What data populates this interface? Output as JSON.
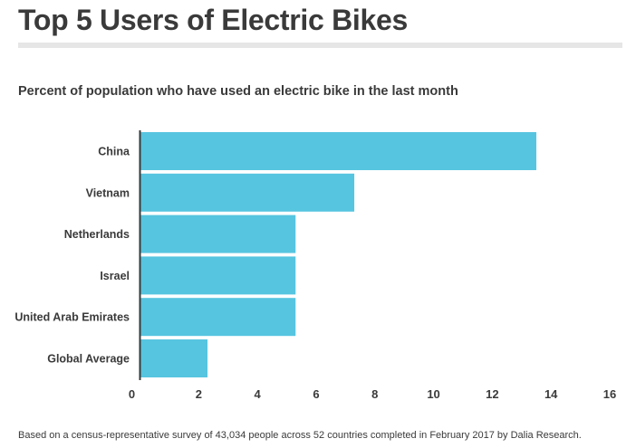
{
  "header": {
    "title": "Top 5 Users of Electric Bikes",
    "subtitle": "Percent of population who have used an electric bike in the last month"
  },
  "footnote": "Based on a census-representative survey of 43,034 people across 52 countries completed in February 2017 by Dalia Research.",
  "colors": {
    "bar": "#56c5e0",
    "axis": "#3a3a3a",
    "title_rule": "#e6e6e6"
  },
  "chart_data": {
    "type": "bar",
    "orientation": "horizontal",
    "title": "Top 5 Users of Electric Bikes",
    "subtitle": "Percent of population who have used an electric bike in the last month",
    "xlabel": "",
    "ylabel": "",
    "xlim": [
      0,
      16
    ],
    "xticks": [
      0,
      2,
      4,
      6,
      8,
      10,
      12,
      14,
      16
    ],
    "grid": false,
    "legend": "none",
    "categories": [
      "China",
      "Vietnam",
      "Netherlands",
      "Israel",
      "United Arab Emirates",
      "Global Average"
    ],
    "values": [
      13.5,
      7.3,
      5.3,
      5.3,
      5.3,
      2.3
    ]
  }
}
